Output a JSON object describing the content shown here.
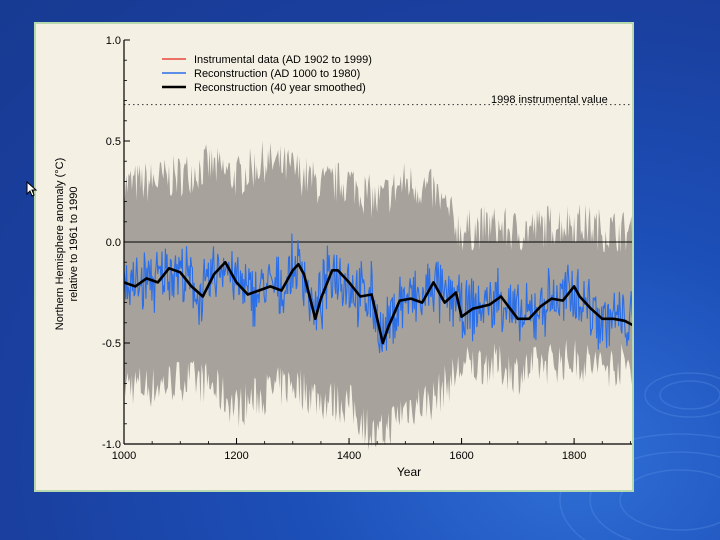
{
  "slide": {
    "background_color": "#1c4fb8",
    "panel_color": "#f4f1e4",
    "panel_border_color": "#b7d9b0"
  },
  "icons": {
    "cursor": "arrow-cursor-icon"
  },
  "chart_data": {
    "type": "line",
    "title": "",
    "xlabel": "Year",
    "ylabel": "Northern Hemisphere anomaly (°C)",
    "ylabel_sub": "relative to 1961 to 1990",
    "xlim": [
      1000,
      1910
    ],
    "ylim": [
      -1.0,
      1.0
    ],
    "xticks": [
      "1000",
      "1200",
      "1400",
      "1600",
      "1800"
    ],
    "yticks": [
      "-1.0",
      "-0.5",
      "0.0",
      "0.5",
      "1.0"
    ],
    "grid": false,
    "legend_position": "top-left",
    "legend": [
      {
        "label": "Instrumental data (AD 1902 to 1999)",
        "color": "#e8473a"
      },
      {
        "label": "Reconstruction (AD 1000 to 1980)",
        "color": "#2a6ee8"
      },
      {
        "label": "Reconstruction (40 year smoothed)",
        "color": "#000000"
      }
    ],
    "reference_line": {
      "label": "1998 instrumental value",
      "y": 0.68,
      "style": "dotted"
    },
    "zero_line": 0.0,
    "uncertainty_band": {
      "name": "uncertainty range",
      "color": "#a7a39c",
      "x": [
        1000,
        1050,
        1100,
        1150,
        1200,
        1250,
        1300,
        1350,
        1400,
        1450,
        1500,
        1550,
        1600,
        1650,
        1700,
        1750,
        1800,
        1850,
        1900
      ],
      "upper": [
        0.28,
        0.3,
        0.33,
        0.38,
        0.32,
        0.4,
        0.36,
        0.28,
        0.3,
        0.2,
        0.3,
        0.25,
        0.05,
        0.08,
        0.05,
        0.08,
        0.1,
        0.06,
        0.05
      ],
      "lower": [
        -0.7,
        -0.72,
        -0.68,
        -0.7,
        -0.82,
        -0.75,
        -0.7,
        -0.78,
        -0.8,
        -0.98,
        -0.82,
        -0.78,
        -0.62,
        -0.6,
        -0.65,
        -0.6,
        -0.58,
        -0.62,
        -0.6
      ]
    },
    "series": [
      {
        "name": "Reconstruction (40 year smoothed)",
        "color": "#000000",
        "x": [
          1000,
          1020,
          1040,
          1060,
          1080,
          1100,
          1120,
          1140,
          1160,
          1180,
          1200,
          1220,
          1240,
          1260,
          1280,
          1300,
          1310,
          1320,
          1340,
          1350,
          1370,
          1380,
          1400,
          1420,
          1440,
          1450,
          1460,
          1470,
          1490,
          1510,
          1530,
          1550,
          1570,
          1590,
          1600,
          1620,
          1650,
          1670,
          1700,
          1720,
          1740,
          1760,
          1780,
          1800,
          1810,
          1830,
          1850,
          1870,
          1890,
          1910
        ],
        "y": [
          -0.2,
          -0.22,
          -0.18,
          -0.2,
          -0.13,
          -0.15,
          -0.22,
          -0.27,
          -0.16,
          -0.1,
          -0.2,
          -0.26,
          -0.24,
          -0.22,
          -0.24,
          -0.14,
          -0.11,
          -0.16,
          -0.38,
          -0.28,
          -0.14,
          -0.14,
          -0.2,
          -0.27,
          -0.26,
          -0.38,
          -0.5,
          -0.42,
          -0.29,
          -0.28,
          -0.3,
          -0.2,
          -0.3,
          -0.25,
          -0.37,
          -0.33,
          -0.31,
          -0.27,
          -0.38,
          -0.38,
          -0.32,
          -0.28,
          -0.29,
          -0.22,
          -0.27,
          -0.33,
          -0.38,
          -0.38,
          -0.39,
          -0.42
        ]
      }
    ]
  }
}
